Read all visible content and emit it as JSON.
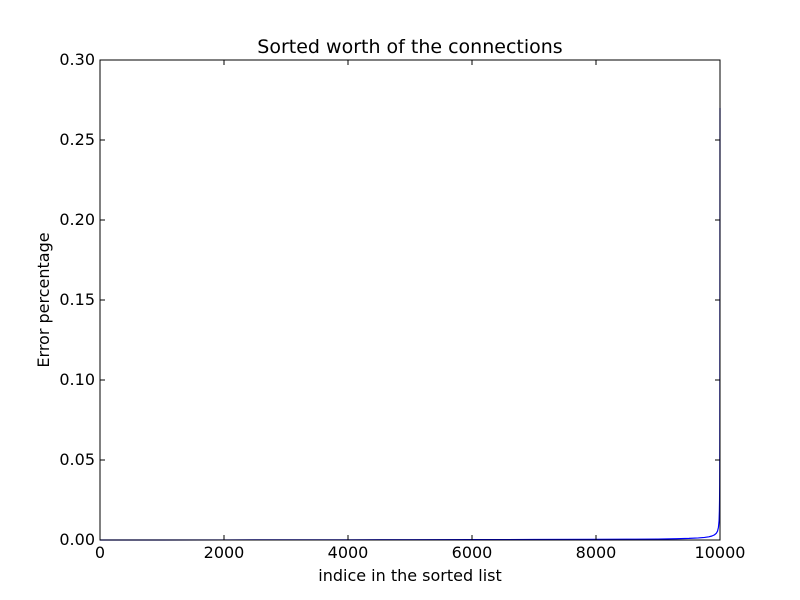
{
  "chart_data": {
    "type": "line",
    "title": "Sorted worth of the connections",
    "xlabel": "indice in the sorted list",
    "ylabel": "Error percentage",
    "xlim": [
      0,
      10000
    ],
    "ylim": [
      0,
      0.3
    ],
    "x_ticks": [
      0,
      2000,
      4000,
      6000,
      8000,
      10000
    ],
    "x_tick_labels": [
      "0",
      "2000",
      "4000",
      "6000",
      "8000",
      "10000"
    ],
    "y_ticks": [
      0,
      0.05,
      0.1,
      0.15,
      0.2,
      0.25,
      0.3
    ],
    "y_tick_labels": [
      "0.00",
      "0.05",
      "0.10",
      "0.15",
      "0.20",
      "0.25",
      "0.30"
    ],
    "grid": false,
    "series": [
      {
        "color": "#0000ff",
        "x": [
          0,
          1000,
          2000,
          3000,
          4000,
          5000,
          6000,
          7000,
          8000,
          8500,
          9000,
          9300,
          9500,
          9650,
          9750,
          9820,
          9870,
          9910,
          9940,
          9960,
          9975,
          9985,
          9990,
          9993,
          9995,
          9997,
          9998,
          9999,
          10000
        ],
        "y": [
          0.0,
          2e-05,
          5e-05,
          8e-05,
          0.00012,
          0.00017,
          0.00023,
          0.0003,
          0.0004,
          0.00048,
          0.0006,
          0.0008,
          0.001,
          0.0013,
          0.0016,
          0.002,
          0.0025,
          0.0032,
          0.0042,
          0.0055,
          0.008,
          0.012,
          0.018,
          0.025,
          0.035,
          0.06,
          0.1,
          0.18,
          0.27
        ]
      }
    ]
  }
}
